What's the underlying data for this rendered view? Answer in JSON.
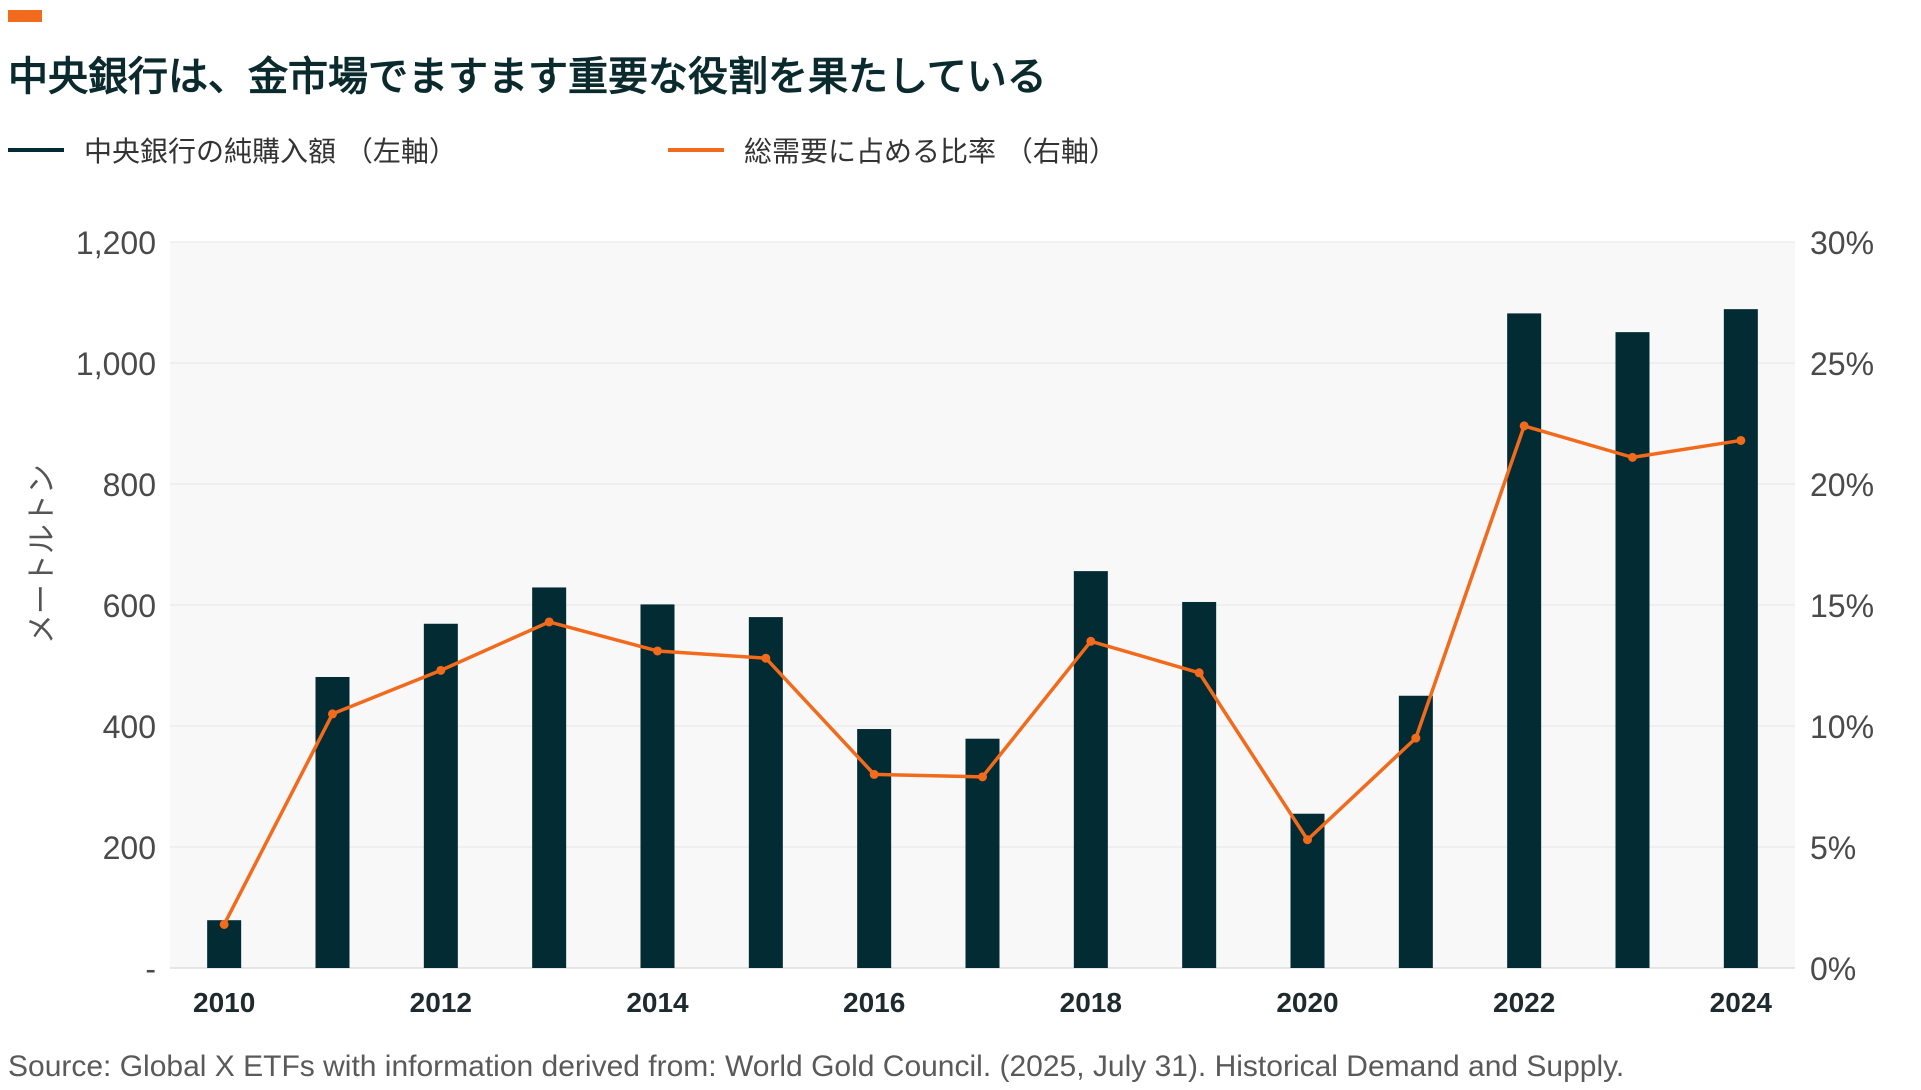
{
  "title": "中央銀行は、金市場でますます重要な役割を果たしている",
  "legend": {
    "bars_label": "中央銀行の純購入額 （左軸）",
    "line_label": "総需要に占める比率 （右軸）"
  },
  "source": "Source: Global X ETFs with information derived from: World Gold Council. (2025, July 31). Historical Demand and Supply.",
  "colors": {
    "bar": "#022b33",
    "line": "#f26a1b",
    "accent": "#f26a1b",
    "grid": "#e6e6e6",
    "plot_bg": "#f8f8f8"
  },
  "chart_data": {
    "type": "bar",
    "x": [
      2010,
      2011,
      2012,
      2013,
      2014,
      2015,
      2016,
      2017,
      2018,
      2019,
      2020,
      2021,
      2022,
      2023,
      2024
    ],
    "x_tick_labels": [
      "2010",
      "2012",
      "2014",
      "2016",
      "2018",
      "2020",
      "2022",
      "2024"
    ],
    "ylabel": "メートルトン",
    "ylim": [
      0,
      1200
    ],
    "y_tick_labels": [
      "-",
      "200",
      "400",
      "600",
      "800",
      "1,000",
      "1,200"
    ],
    "y2lim": [
      0,
      30
    ],
    "y2_tick_labels": [
      "0%",
      "5%",
      "10%",
      "15%",
      "20%",
      "25%",
      "30%"
    ],
    "grid": true,
    "legend_position": "top-left",
    "series": [
      {
        "name": "中央銀行の純購入額 （左軸）",
        "type": "bar",
        "axis": "left",
        "values": [
          79,
          481,
          569,
          629,
          601,
          580,
          395,
          379,
          656,
          605,
          255,
          450,
          1082,
          1051,
          1089
        ]
      },
      {
        "name": "総需要に占める比率 （右軸）",
        "type": "line",
        "axis": "right",
        "values": [
          1.8,
          10.5,
          12.3,
          14.3,
          13.1,
          12.8,
          8.0,
          7.9,
          13.5,
          12.2,
          5.3,
          9.5,
          22.4,
          21.1,
          21.8
        ]
      }
    ]
  }
}
